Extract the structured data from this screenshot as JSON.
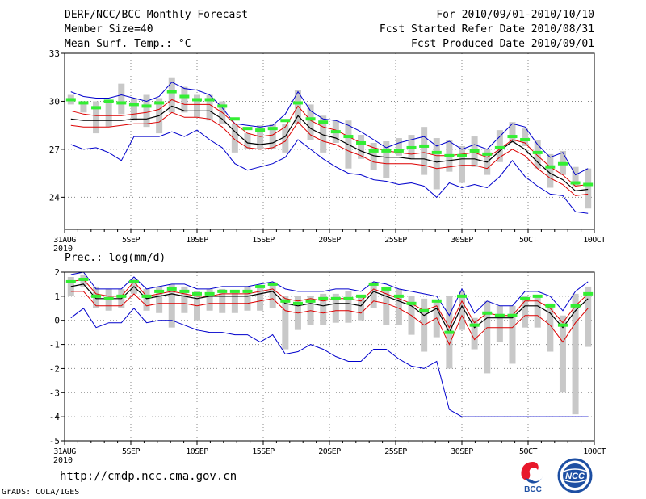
{
  "header": {
    "title": "DERF/NCC/BCC Monthly Forecast",
    "member_size": "Member Size=40",
    "variable": "Mean Surf. Temp.: °C",
    "for_range": "For 2010/09/01-2010/10/10",
    "started": "Fcst Started Refer Date 2010/08/31",
    "produced": "Fcst Produced Date 2010/09/01"
  },
  "footer": {
    "url": "http://cmdp.ncc.cma.gov.cn",
    "grads": "GrADS: COLA/IGES",
    "logo_bcc": "BCC",
    "logo_ncc": "NCC"
  },
  "colors": {
    "envelope": "#0000cc",
    "spread": "#dd0000",
    "mean": "#000000",
    "obs": "#33ee33",
    "box": "#c8c8c8",
    "grid": "#888888"
  },
  "chart_data": [
    {
      "type": "line",
      "title": "Mean Surf. Temp.: °C",
      "ylim": [
        22,
        33
      ],
      "yticks": [
        24,
        27,
        30,
        33
      ],
      "days": 40,
      "xticks": [
        {
          "day": 0,
          "label": "31AUG",
          "sub": "2010"
        },
        {
          "day": 5,
          "label": "5SEP"
        },
        {
          "day": 10,
          "label": "10SEP"
        },
        {
          "day": 15,
          "label": "15SEP"
        },
        {
          "day": 20,
          "label": "20SEP"
        },
        {
          "day": 25,
          "label": "25SEP"
        },
        {
          "day": 30,
          "label": "30SEP"
        },
        {
          "day": 35,
          "label": "5OCT"
        },
        {
          "day": 40,
          "label": "10OCT"
        }
      ],
      "series": {
        "max": [
          30.6,
          30.3,
          30.2,
          30.2,
          30.4,
          30.2,
          30.0,
          30.3,
          31.2,
          30.8,
          30.7,
          30.4,
          29.6,
          28.6,
          28.5,
          28.4,
          28.5,
          29.2,
          30.6,
          29.4,
          28.9,
          28.8,
          28.5,
          28.1,
          27.6,
          27.1,
          27.4,
          27.6,
          27.8,
          27.2,
          27.5,
          27.0,
          27.3,
          27.0,
          27.8,
          28.6,
          28.4,
          27.3,
          26.5,
          26.8,
          25.4,
          25.8
        ],
        "upper": [
          29.4,
          29.2,
          29.1,
          29.1,
          29.1,
          29.2,
          29.3,
          29.5,
          30.1,
          29.8,
          29.8,
          29.8,
          29.3,
          28.6,
          28.0,
          27.8,
          27.9,
          28.4,
          29.7,
          28.8,
          28.4,
          28.2,
          27.8,
          27.4,
          27.1,
          26.9,
          26.8,
          26.7,
          26.8,
          26.6,
          26.6,
          26.7,
          26.8,
          26.5,
          27.0,
          27.6,
          27.4,
          26.6,
          25.9,
          25.4,
          24.7,
          24.8
        ],
        "mean": [
          28.9,
          28.8,
          28.8,
          28.8,
          28.8,
          28.9,
          28.9,
          29.1,
          29.7,
          29.4,
          29.4,
          29.4,
          28.9,
          28.1,
          27.4,
          27.3,
          27.4,
          27.8,
          29.1,
          28.3,
          27.9,
          27.7,
          27.3,
          26.9,
          26.6,
          26.5,
          26.5,
          26.4,
          26.4,
          26.2,
          26.3,
          26.4,
          26.4,
          26.2,
          26.9,
          27.5,
          27.0,
          26.2,
          25.5,
          25.1,
          24.4,
          24.5
        ],
        "lower": [
          28.5,
          28.4,
          28.4,
          28.4,
          28.5,
          28.6,
          28.6,
          28.7,
          29.3,
          29.0,
          29.0,
          28.9,
          28.4,
          27.6,
          27.1,
          27.0,
          27.1,
          27.5,
          28.7,
          27.9,
          27.5,
          27.3,
          26.9,
          26.6,
          26.2,
          26.1,
          26.1,
          26.1,
          26.0,
          25.8,
          25.9,
          26.0,
          26.0,
          25.8,
          26.5,
          27.0,
          26.6,
          25.8,
          25.2,
          24.8,
          24.1,
          24.2
        ],
        "min": [
          27.3,
          27.0,
          27.1,
          26.8,
          26.3,
          27.8,
          27.8,
          27.8,
          28.1,
          27.8,
          28.2,
          27.6,
          27.1,
          26.1,
          25.7,
          25.9,
          26.1,
          26.5,
          27.6,
          27.0,
          26.4,
          25.9,
          25.5,
          25.4,
          25.1,
          25.0,
          24.8,
          24.9,
          24.7,
          24.0,
          24.9,
          24.6,
          24.8,
          24.6,
          25.3,
          26.3,
          25.3,
          24.7,
          24.2,
          24.1,
          23.1,
          23.0
        ],
        "box_low": [
          29.8,
          29.3,
          28.0,
          28.4,
          29.2,
          28.8,
          28.4,
          28.0,
          29.3,
          29.3,
          29.0,
          28.8,
          28.6,
          26.8,
          27.0,
          27.0,
          27.0,
          26.8,
          28.6,
          27.6,
          26.8,
          27.4,
          25.8,
          26.4,
          25.7,
          25.2,
          26.6,
          26.4,
          25.4,
          24.5,
          25.6,
          24.9,
          25.9,
          25.4,
          26.2,
          27.4,
          27.2,
          25.8,
          24.6,
          25.4,
          24.7,
          23.3
        ],
        "box_high": [
          30.4,
          30.0,
          30.0,
          30.1,
          31.1,
          30.2,
          30.4,
          30.2,
          31.5,
          30.9,
          30.4,
          30.4,
          30.0,
          28.6,
          28.0,
          28.5,
          28.6,
          28.6,
          30.7,
          29.8,
          29.1,
          28.8,
          28.8,
          27.9,
          27.4,
          27.5,
          27.7,
          27.9,
          28.4,
          27.7,
          27.6,
          27.2,
          27.8,
          27.0,
          28.2,
          28.7,
          28.3,
          27.6,
          26.7,
          26.9,
          25.9,
          25.8
        ],
        "obs": [
          30.1,
          29.9,
          29.6,
          30.0,
          29.9,
          29.8,
          29.7,
          29.9,
          30.6,
          30.3,
          30.1,
          30.1,
          29.7,
          28.9,
          28.3,
          28.2,
          28.3,
          28.8,
          29.9,
          28.9,
          28.7,
          28.1,
          27.8,
          27.4,
          26.9,
          26.9,
          26.9,
          27.1,
          27.2,
          26.8,
          26.6,
          26.6,
          26.9,
          26.7,
          27.1,
          27.8,
          27.6,
          26.8,
          25.9,
          26.1,
          24.9,
          24.8
        ]
      }
    },
    {
      "type": "line",
      "title": "Prec.: log(mm/d)",
      "ylim": [
        -5,
        2
      ],
      "yticks": [
        -5,
        -4,
        -3,
        -2,
        -1,
        0,
        1,
        2
      ],
      "days": 40,
      "xticks": [
        {
          "day": 0,
          "label": "31AUG",
          "sub": "2010"
        },
        {
          "day": 5,
          "label": "5SEP"
        },
        {
          "day": 10,
          "label": "10SEP"
        },
        {
          "day": 15,
          "label": "15SEP"
        },
        {
          "day": 20,
          "label": "20SEP"
        },
        {
          "day": 25,
          "label": "25SEP"
        },
        {
          "day": 30,
          "label": "30SEP"
        },
        {
          "day": 35,
          "label": "5OCT"
        },
        {
          "day": 40,
          "label": "10OCT"
        }
      ],
      "series": {
        "max": [
          1.9,
          2.0,
          1.3,
          1.3,
          1.3,
          1.8,
          1.3,
          1.4,
          1.5,
          1.5,
          1.3,
          1.3,
          1.4,
          1.4,
          1.4,
          1.5,
          1.6,
          1.3,
          1.2,
          1.2,
          1.2,
          1.3,
          1.3,
          1.2,
          1.6,
          1.5,
          1.3,
          1.2,
          1.1,
          1.0,
          0.2,
          1.3,
          0.3,
          0.8,
          0.6,
          0.6,
          1.2,
          1.2,
          1.0,
          0.4,
          1.2,
          1.6
        ],
        "upper": [
          1.6,
          1.7,
          1.1,
          1.0,
          1.0,
          1.6,
          1.0,
          1.1,
          1.2,
          1.1,
          1.0,
          1.0,
          1.1,
          1.1,
          1.1,
          1.2,
          1.3,
          0.9,
          0.8,
          0.9,
          0.8,
          0.9,
          0.9,
          0.8,
          1.3,
          1.1,
          0.9,
          0.7,
          0.4,
          0.6,
          -0.3,
          0.8,
          -0.1,
          0.3,
          0.2,
          0.2,
          0.8,
          0.8,
          0.5,
          -0.1,
          0.6,
          1.1
        ],
        "mean": [
          1.4,
          1.5,
          0.9,
          0.9,
          0.9,
          1.4,
          0.9,
          1.0,
          1.1,
          1.0,
          0.9,
          1.0,
          1.0,
          1.0,
          1.0,
          1.1,
          1.2,
          0.7,
          0.6,
          0.7,
          0.6,
          0.7,
          0.7,
          0.6,
          1.2,
          1.0,
          0.8,
          0.6,
          0.2,
          0.5,
          -0.5,
          0.6,
          -0.3,
          0.1,
          0.1,
          0.1,
          0.6,
          0.6,
          0.3,
          -0.3,
          0.4,
          0.9
        ],
        "lower": [
          1.2,
          1.2,
          0.6,
          0.6,
          0.6,
          1.1,
          0.6,
          0.7,
          0.7,
          0.7,
          0.6,
          0.7,
          0.7,
          0.7,
          0.7,
          0.8,
          0.9,
          0.4,
          0.3,
          0.4,
          0.3,
          0.4,
          0.4,
          0.3,
          0.8,
          0.7,
          0.5,
          0.2,
          -0.2,
          0.1,
          -1.0,
          0.2,
          -0.8,
          -0.3,
          -0.3,
          -0.3,
          0.2,
          0.2,
          -0.2,
          -0.9,
          -0.1,
          0.5
        ],
        "min": [
          0.1,
          0.5,
          -0.3,
          -0.1,
          -0.1,
          0.5,
          -0.1,
          0.0,
          0.0,
          -0.2,
          -0.4,
          -0.5,
          -0.5,
          -0.6,
          -0.6,
          -0.9,
          -0.6,
          -1.4,
          -1.3,
          -1.0,
          -1.2,
          -1.5,
          -1.7,
          -1.7,
          -1.2,
          -1.2,
          -1.6,
          -1.9,
          -2.0,
          -1.7,
          -3.7,
          -4.0,
          -4.0,
          -4.0,
          -4.0,
          -4.0,
          -4.0,
          -4.0,
          -4.0,
          -4.0,
          -4.0,
          -4.0
        ],
        "box_low": [
          1.0,
          1.4,
          0.5,
          0.4,
          0.5,
          1.1,
          0.4,
          0.3,
          -0.3,
          0.3,
          0.0,
          0.4,
          0.3,
          0.3,
          0.4,
          0.4,
          0.5,
          -1.2,
          -0.4,
          -0.2,
          -0.2,
          -0.1,
          -0.1,
          0.0,
          0.5,
          -0.2,
          -0.2,
          -0.6,
          -1.3,
          -0.7,
          -2.0,
          -0.4,
          -1.2,
          -2.2,
          -0.9,
          -1.8,
          -0.3,
          -0.3,
          -1.3,
          -3.0,
          -3.9,
          -1.1
        ],
        "box_high": [
          1.8,
          1.9,
          1.4,
          1.3,
          1.3,
          1.7,
          1.3,
          1.4,
          1.5,
          1.4,
          1.2,
          1.3,
          1.3,
          1.2,
          1.4,
          1.4,
          1.6,
          1.0,
          1.0,
          1.0,
          1.1,
          1.1,
          1.2,
          1.0,
          1.6,
          1.4,
          1.3,
          1.0,
          0.9,
          0.8,
          1.0,
          1.2,
          0.1,
          0.8,
          0.6,
          0.6,
          1.0,
          1.0,
          0.7,
          0.2,
          1.1,
          1.4
        ],
        "obs": [
          1.6,
          1.7,
          1.0,
          0.9,
          1.0,
          1.6,
          1.0,
          1.2,
          1.3,
          1.2,
          1.1,
          1.1,
          1.2,
          1.2,
          1.2,
          1.4,
          1.5,
          0.8,
          0.7,
          0.8,
          0.9,
          0.9,
          0.9,
          1.0,
          1.5,
          1.3,
          1.0,
          0.7,
          0.4,
          0.8,
          -0.5,
          1.0,
          -0.2,
          0.3,
          0.2,
          0.2,
          0.9,
          1.0,
          0.6,
          -0.2,
          0.6,
          1.1
        ]
      }
    }
  ]
}
